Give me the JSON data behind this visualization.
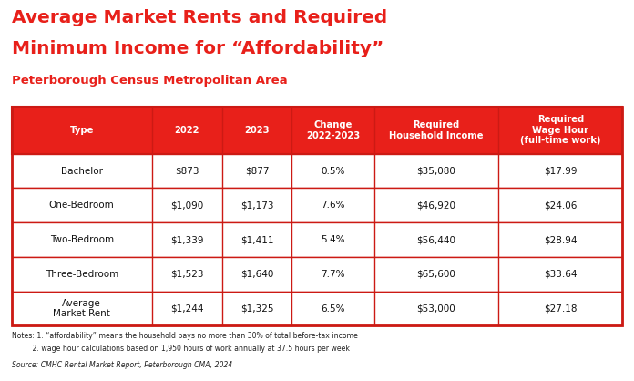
{
  "title_line1": "Average Market Rents and Required",
  "title_line2": "Minimum Income for “Affordability”",
  "subtitle": "Peterborough Census Metropolitan Area",
  "title_color": "#E8201A",
  "subtitle_color": "#E8201A",
  "header_bg": "#E8201A",
  "header_text_color": "#FFFFFF",
  "table_border_color": "#CC1A14",
  "bg_color": "#FFFFFF",
  "columns": [
    "Type",
    "2022",
    "2023",
    "Change\n2022-2023",
    "Required\nHousehold Income",
    "Required\nWage Hour\n(full-time work)"
  ],
  "rows": [
    [
      "Bachelor",
      "$873",
      "$877",
      "0.5%",
      "$35,080",
      "$17.99"
    ],
    [
      "One-Bedroom",
      "$1,090",
      "$1,173",
      "7.6%",
      "$46,920",
      "$24.06"
    ],
    [
      "Two-Bedroom",
      "$1,339",
      "$1,411",
      "5.4%",
      "$56,440",
      "$28.94"
    ],
    [
      "Three-Bedroom",
      "$1,523",
      "$1,640",
      "7.7%",
      "$65,600",
      "$33.64"
    ],
    [
      "Average\nMarket Rent",
      "$1,244",
      "$1,325",
      "6.5%",
      "$53,000",
      "$27.18"
    ]
  ],
  "note1": "Notes: 1. “affordability” means the household pays no more than 30% of total before-tax income",
  "note2": "         2. wage hour calculations based on 1,950 hours of work annually at 37.5 hours per week",
  "source": "Source: CMHC Rental Market Report, Peterborough CMA, 2024",
  "note_color": "#222222",
  "source_color": "#222222",
  "col_weights": [
    1.45,
    0.72,
    0.72,
    0.85,
    1.28,
    1.28
  ],
  "title_fontsize": 14.5,
  "subtitle_fontsize": 9.5,
  "header_fontsize": 7.2,
  "cell_fontsize": 7.5,
  "note_fontsize": 5.6,
  "source_fontsize": 5.6
}
